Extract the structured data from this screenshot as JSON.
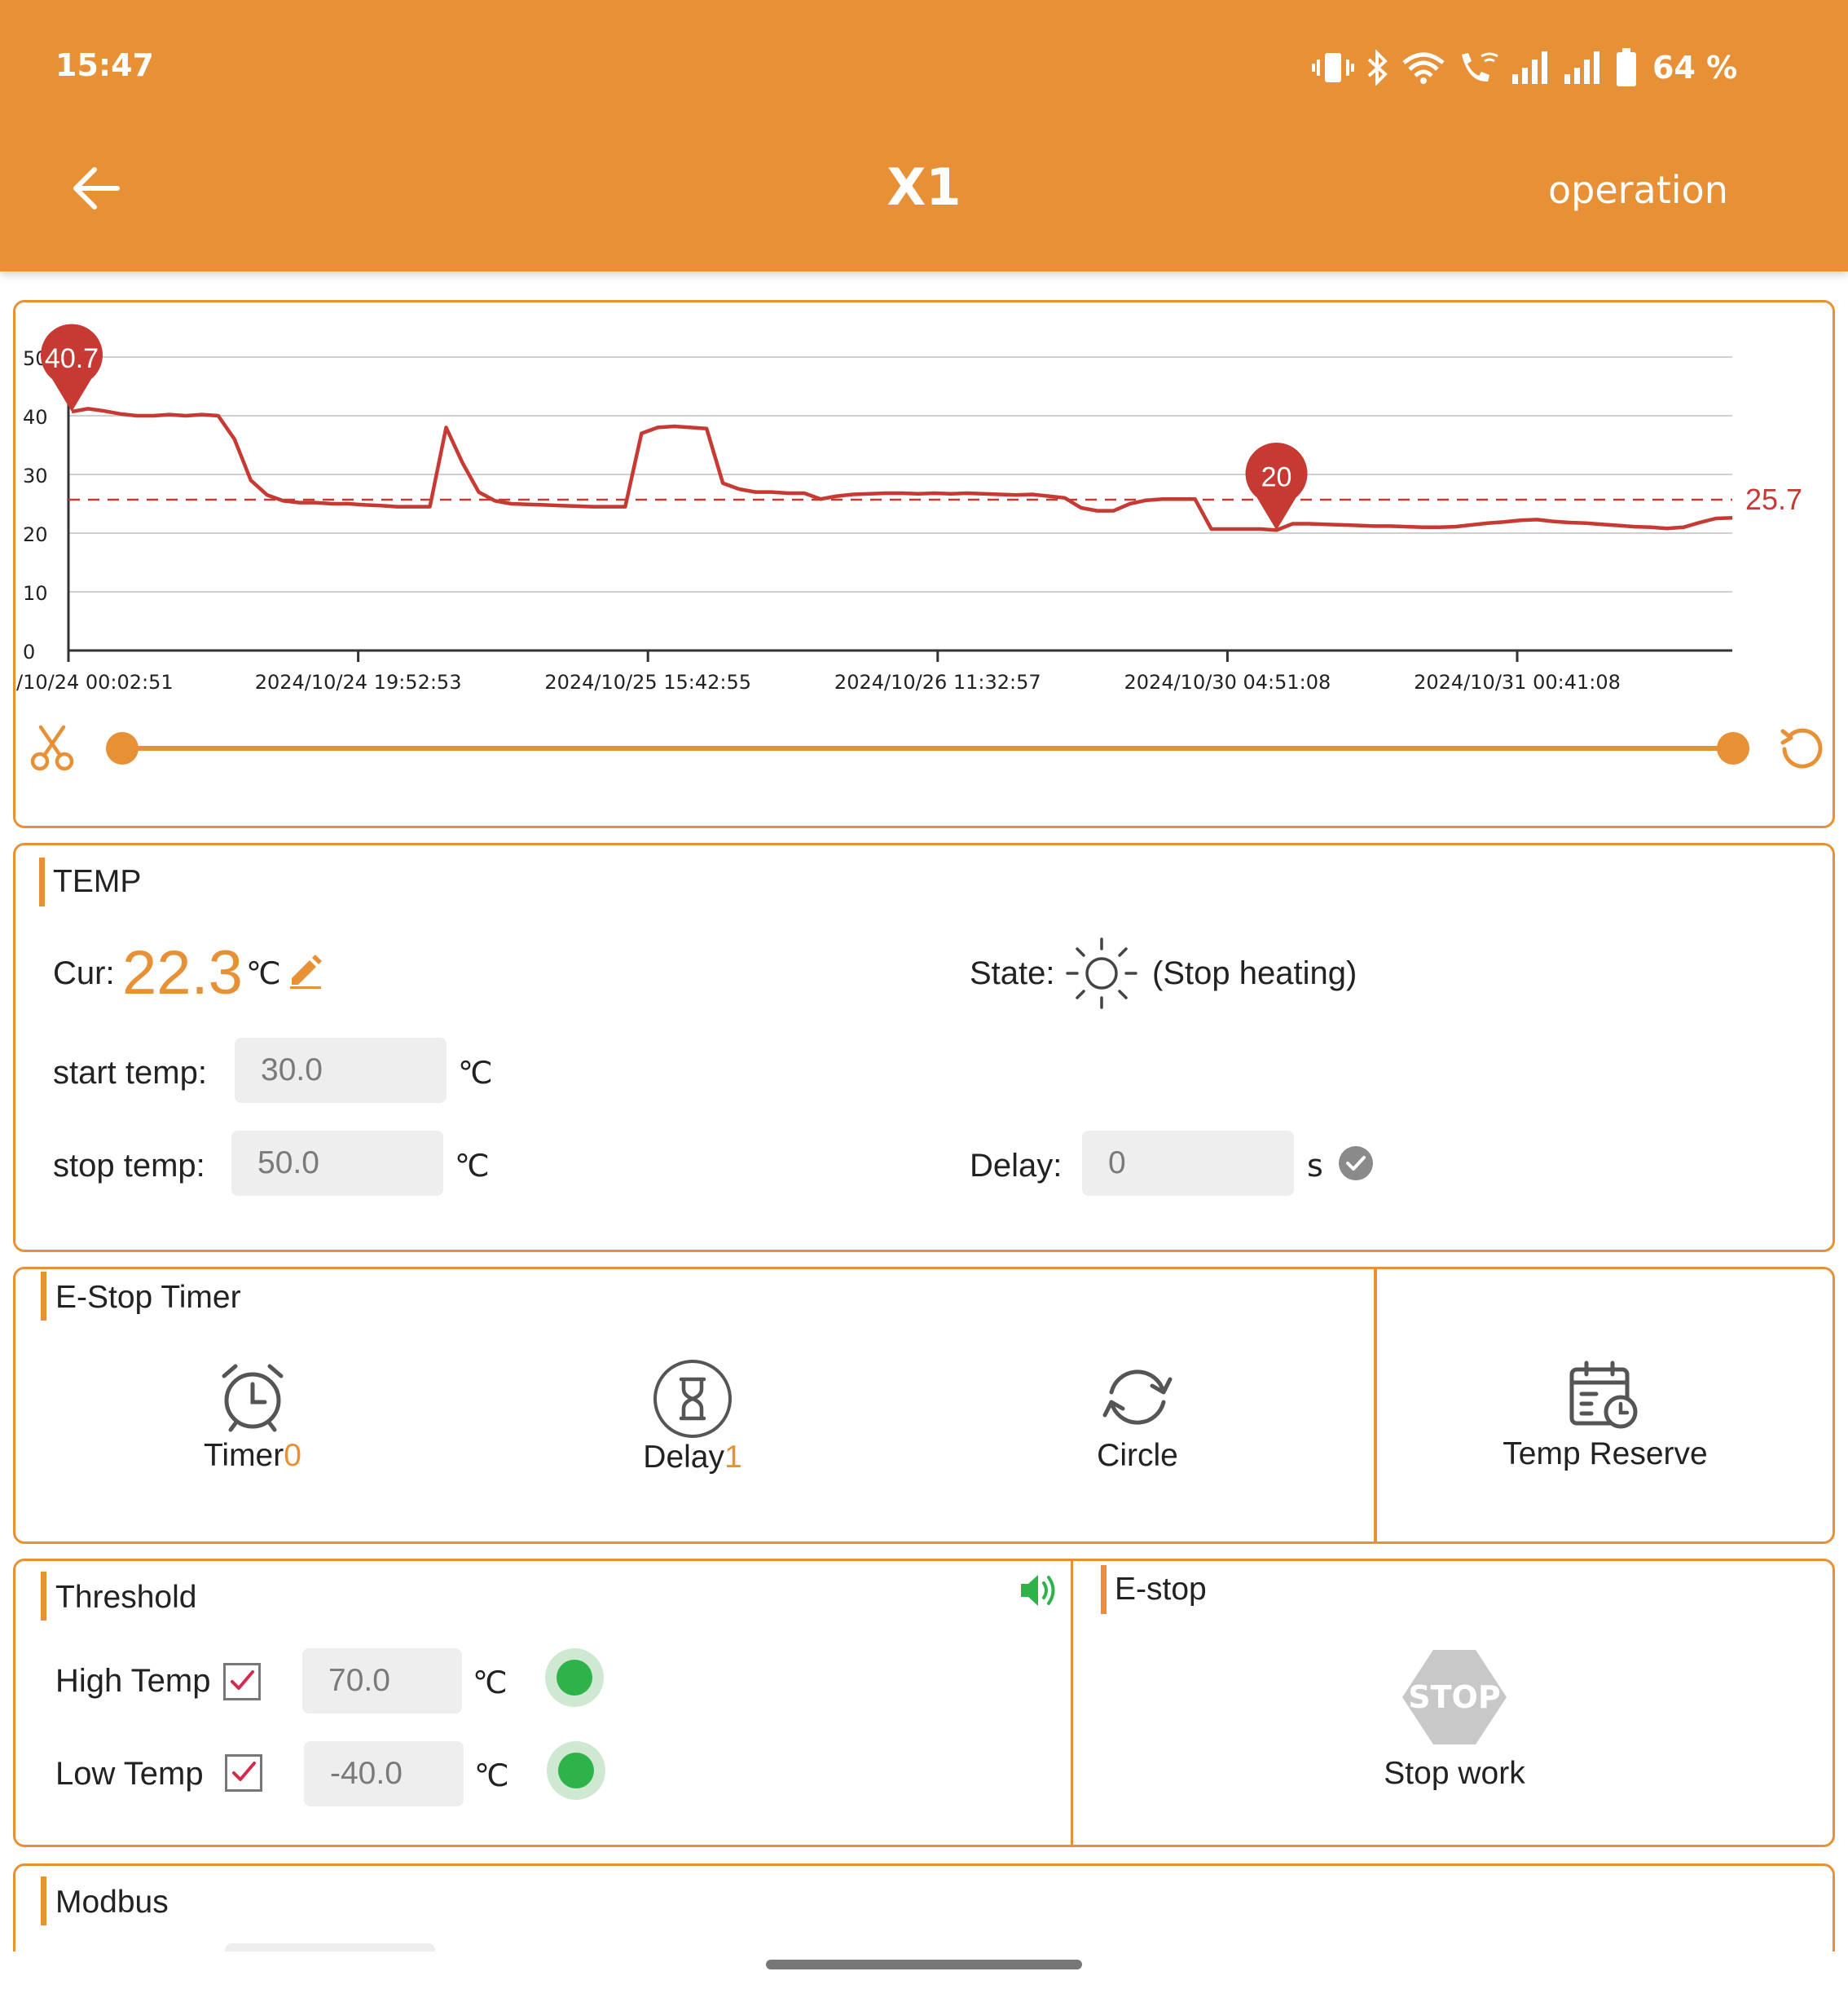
{
  "status_bar": {
    "time": "15:47",
    "battery": "64 %"
  },
  "app_bar": {
    "title": "X1",
    "action": "operation"
  },
  "chart_data": {
    "type": "line",
    "y_ticks": [
      "0",
      "10",
      "20",
      "30",
      "40",
      "50"
    ],
    "ylim": [
      0,
      50
    ],
    "x_ticks": [
      "/10/24 00:02:51",
      "2024/10/24 19:52:53",
      "2024/10/25 15:42:55",
      "2024/10/26 11:32:57",
      "2024/10/30 04:51:08",
      "2024/10/31 00:41:08"
    ],
    "series": [
      {
        "values": [
          40.7,
          41.2,
          40.8,
          40.3,
          40.0,
          40.0,
          40.2,
          40.0,
          40.2,
          40.0,
          36.0,
          29.0,
          26.5,
          25.5,
          25.2,
          25.2,
          25.0,
          25.0,
          24.8,
          24.7,
          24.5,
          24.5,
          24.5,
          38.0,
          32.0,
          27.0,
          25.5,
          25.0,
          24.9,
          24.8,
          24.7,
          24.6,
          24.5,
          24.5,
          24.5,
          37.0,
          38.0,
          38.2,
          38.0,
          37.8,
          28.5,
          27.5,
          27.0,
          27.0,
          26.8,
          26.8,
          25.8,
          26.3,
          26.6,
          26.7,
          26.8,
          26.8,
          26.7,
          26.8,
          26.7,
          26.8,
          26.7,
          26.6,
          26.5,
          26.6,
          26.3,
          26.0,
          24.3,
          23.8,
          23.8,
          25.0,
          25.6,
          25.8,
          25.8,
          25.8,
          20.7,
          20.7,
          20.7,
          20.7,
          20.5,
          21.6,
          21.6,
          21.5,
          21.4,
          21.3,
          21.2,
          21.2,
          21.1,
          21.0,
          21.0,
          21.1,
          21.4,
          21.7,
          21.9,
          22.2,
          22.3,
          22.0,
          21.8,
          21.7,
          21.5,
          21.3,
          21.1,
          21.0,
          20.8,
          21.0,
          21.8,
          22.5,
          22.6
        ]
      }
    ],
    "max_marker": "40.7",
    "min_marker": "20",
    "average_label": "25.7",
    "average": 25.7
  },
  "temp": {
    "title": "TEMP",
    "cur_label": "Cur:",
    "cur_value": "22.3",
    "unit": "℃",
    "state_label": "State:",
    "state_value": "(Stop heating)",
    "start_label": "start temp:",
    "start_value": "30.0",
    "stop_label": "stop temp:",
    "stop_value": "50.0",
    "delay_label": "Delay:",
    "delay_value": "0",
    "delay_unit": "s"
  },
  "estop_timer": {
    "title": "E-Stop Timer",
    "timer_label": "Timer",
    "timer_count": "0",
    "delay_label": "Delay",
    "delay_count": "1",
    "circle_label": "Circle",
    "reserve_label": "Temp Reserve"
  },
  "threshold": {
    "title": "Threshold",
    "high_label": "High Temp",
    "high_value": "70.0",
    "low_label": "Low  Temp",
    "low_value": "-40.0",
    "unit": "℃"
  },
  "estop": {
    "title": "E-stop",
    "stop_sign": "STOP",
    "button_label": "Stop work"
  },
  "modbus": {
    "title": "Modbus"
  },
  "colors": {
    "accent": "#E89035",
    "line": "#C73A33",
    "led": "#2EB34A"
  }
}
